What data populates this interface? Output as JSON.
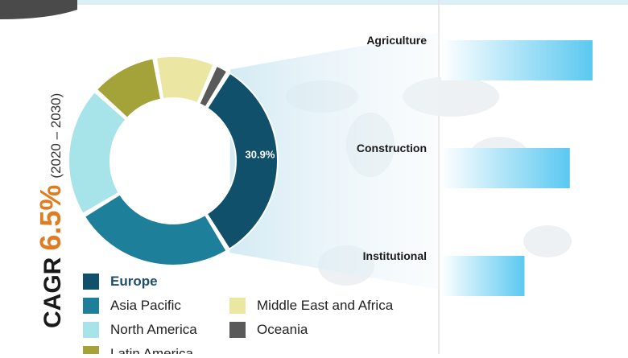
{
  "cagr": {
    "label": "CAGR",
    "value": "6.5%",
    "period": "(2020 – 2030)"
  },
  "chart_data": [
    {
      "type": "pie",
      "variant": "donut",
      "slice_label": "30.9%",
      "slices": [
        {
          "name": "Europe",
          "value": 30.9,
          "color": "#11506a"
        },
        {
          "name": "Asia Pacific",
          "value": 24.0,
          "color": "#1d7f9a"
        },
        {
          "name": "North America",
          "value": 19.5,
          "color": "#a7e4ea"
        },
        {
          "name": "Latin America",
          "value": 10.0,
          "color": "#a3a33a"
        },
        {
          "name": "Middle East and Africa",
          "value": 9.0,
          "color": "#ece6a3"
        },
        {
          "name": "Oceania",
          "value": 2.2,
          "color": "#5a5a5a"
        }
      ],
      "legend": [
        "Europe",
        "Asia Pacific",
        "North America",
        "Latin America",
        "Middle East and Africa",
        "Oceania"
      ]
    },
    {
      "type": "bar",
      "orientation": "horizontal",
      "categories": [
        "Agriculture",
        "Construction",
        "Institutional"
      ],
      "values": [
        1.0,
        0.85,
        0.55
      ],
      "color": "#5bc8f0"
    }
  ]
}
